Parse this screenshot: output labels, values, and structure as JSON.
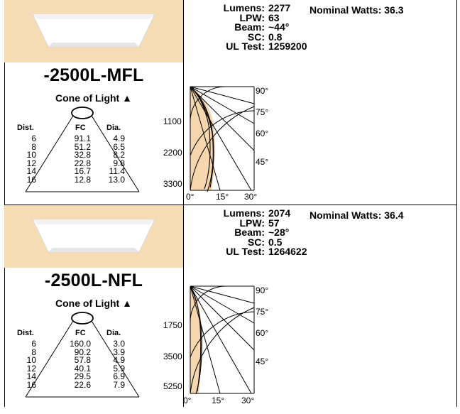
{
  "blocks": [
    {
      "model": "-2500L-MFL",
      "cone_title": "Cone of Light",
      "headers": {
        "dist": "Dist.",
        "fc": "FC",
        "dia": "Dia."
      },
      "dist": [
        "6",
        "8",
        "10",
        "12",
        "14",
        "16"
      ],
      "fc": [
        "91.1",
        "51.2",
        "32.8",
        "22.8",
        "16.7",
        "12.8"
      ],
      "dia": [
        "4.9",
        "6.5",
        "8.2",
        "9.8",
        "11.4",
        "13.0"
      ],
      "specs": {
        "lumens_label": "Lumens:",
        "lumens": "2277",
        "lpw_label": "LPW:",
        "lpw": "63",
        "beam_label": "Beam:",
        "beam": "~44°",
        "sc_label": "SC:",
        "sc": "0.8",
        "ul_label": "UL Test:",
        "ul": "1259200"
      },
      "watts": "Nominal Watts: 36.3",
      "polar": {
        "radial_labels": [
          "1100",
          "2200",
          "3300"
        ],
        "angle_labels": [
          "90°",
          "75°",
          "60°",
          "45°"
        ],
        "bottom_labels": [
          "0°",
          "15°",
          "30°"
        ]
      }
    },
    {
      "model": "-2500L-NFL",
      "cone_title": "Cone of Light",
      "headers": {
        "dist": "Dist.",
        "fc": "FC",
        "dia": "Dia."
      },
      "dist": [
        "6",
        "8",
        "10",
        "12",
        "14",
        "16"
      ],
      "fc": [
        "160.0",
        "90.2",
        "57.8",
        "40.1",
        "29.5",
        "22.6"
      ],
      "dia": [
        "3.0",
        "3.9",
        "4.9",
        "5.9",
        "6.9",
        "7.9"
      ],
      "specs": {
        "lumens_label": "Lumens:",
        "lumens": "2074",
        "lpw_label": "LPW:",
        "lpw": "57",
        "beam_label": "Beam:",
        "beam": "~28°",
        "sc_label": "SC:",
        "sc": "0.5",
        "ul_label": "UL Test:",
        "ul": "1264622"
      },
      "watts": "Nominal Watts: 36.4",
      "polar": {
        "radial_labels": [
          "1750",
          "3500",
          "5250"
        ],
        "angle_labels": [
          "90°",
          "75°",
          "60°",
          "45°"
        ],
        "bottom_labels": [
          "0°",
          "15°",
          "30°"
        ]
      }
    }
  ]
}
